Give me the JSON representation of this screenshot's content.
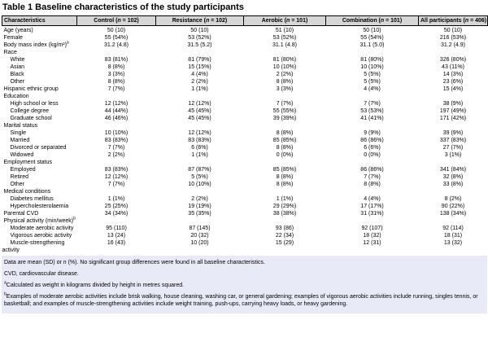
{
  "title": "Table 1 Baseline characteristics of the study participants",
  "colors": {
    "header_bg": "#d6d6d6",
    "footnote_bg": "#e9eaf7",
    "border": "#000000",
    "text": "#000000",
    "page_bg": "#ffffff"
  },
  "table": {
    "columns": [
      {
        "key": "characteristics",
        "label": "Characteristics"
      },
      {
        "key": "control",
        "label": "Control (n = 102)"
      },
      {
        "key": "resistance",
        "label": "Resistance (n = 102)"
      },
      {
        "key": "aerobic",
        "label": "Aerobic (n = 101)"
      },
      {
        "key": "combination",
        "label": "Combination (n = 101)"
      },
      {
        "key": "all-participants",
        "label": "All participants (n = 406)"
      }
    ],
    "rows": [
      {
        "label": "Age (years)",
        "indent": 0,
        "values": [
          "50 (10)",
          "50 (10)",
          "51 (10)",
          "50 (10)",
          "50 (10)"
        ]
      },
      {
        "label": "Female",
        "indent": 0,
        "values": [
          "55 (54%)",
          "53 (52%)",
          "53 (52%)",
          "55 (54%)",
          "216 (53%)"
        ]
      },
      {
        "label": "Body mass index (kg/m²)",
        "sup": "a",
        "indent": 0,
        "values": [
          "31.2 (4.8)",
          "31.5 (5.2)",
          "31.1 (4.8)",
          "31.1 (5.0)",
          "31.2 (4.9)"
        ]
      },
      {
        "label": "Race",
        "indent": 0,
        "values": []
      },
      {
        "label": "White",
        "indent": 1,
        "values": [
          "83 (81%)",
          "81 (79%)",
          "81 (80%)",
          "81 (80%)",
          "326 (80%)"
        ]
      },
      {
        "label": "Asian",
        "indent": 1,
        "values": [
          "8 (8%)",
          "15 (15%)",
          "10 (10%)",
          "10 (10%)",
          "43 (11%)"
        ]
      },
      {
        "label": "Black",
        "indent": 1,
        "values": [
          "3 (3%)",
          "4 (4%)",
          "2 (2%)",
          "5 (5%)",
          "14 (3%)"
        ]
      },
      {
        "label": "Other",
        "indent": 1,
        "values": [
          "8 (8%)",
          "2 (2%)",
          "8 (8%)",
          "5 (5%)",
          "23 (6%)"
        ]
      },
      {
        "label": "Hispanic ethnic group",
        "indent": 0,
        "values": [
          "7 (7%)",
          "1 (1%)",
          "3 (3%)",
          "4 (4%)",
          "15 (4%)"
        ]
      },
      {
        "label": "Education",
        "indent": 0,
        "values": []
      },
      {
        "label": "High school or less",
        "indent": 1,
        "values": [
          "12 (12%)",
          "12 (12%)",
          "7 (7%)",
          "7 (7%)",
          "38 (9%)"
        ]
      },
      {
        "label": "College degree",
        "indent": 1,
        "values": [
          "44 (44%)",
          "45 (45%)",
          "55 (55%)",
          "53 (53%)",
          "197 (49%)"
        ]
      },
      {
        "label": "Graduate school",
        "indent": 1,
        "values": [
          "46 (46%)",
          "45 (45%)",
          "39 (39%)",
          "41 (41%)",
          "171 (42%)"
        ]
      },
      {
        "label": "Marital status",
        "indent": 0,
        "values": []
      },
      {
        "label": "Single",
        "indent": 1,
        "values": [
          "10 (10%)",
          "12 (12%)",
          "8 (8%)",
          "9 (9%)",
          "39 (9%)"
        ]
      },
      {
        "label": "Married",
        "indent": 1,
        "values": [
          "83 (83%)",
          "83 (83%)",
          "85 (85%)",
          "86 (86%)",
          "337 (83%)"
        ]
      },
      {
        "label": "Divorced or separated",
        "indent": 1,
        "values": [
          "7 (7%)",
          "6 (6%)",
          "8 (8%)",
          "6 (6%)",
          "27 (7%)"
        ]
      },
      {
        "label": "Widowed",
        "indent": 1,
        "values": [
          "2 (2%)",
          "1 (1%)",
          "0 (0%)",
          "0 (0%)",
          "3 (1%)"
        ]
      },
      {
        "label": "Employment status",
        "indent": 0,
        "values": []
      },
      {
        "label": "Employed",
        "indent": 1,
        "values": [
          "83 (83%)",
          "87 (87%)",
          "85 (85%)",
          "86 (86%)",
          "341 (84%)"
        ]
      },
      {
        "label": "Retired",
        "indent": 1,
        "values": [
          "12 (12%)",
          "5 (5%)",
          "8 (8%)",
          "7 (7%)",
          "32 (8%)"
        ]
      },
      {
        "label": "Other",
        "indent": 1,
        "values": [
          "7 (7%)",
          "10 (10%)",
          "8 (8%)",
          "8 (8%)",
          "33 (8%)"
        ]
      },
      {
        "label": "Medical conditions",
        "indent": 0,
        "values": []
      },
      {
        "label": "Diabetes mellitus",
        "indent": 1,
        "values": [
          "1 (1%)",
          "2 (2%)",
          "1 (1%)",
          "4 (4%)",
          "8 (2%)"
        ]
      },
      {
        "label": "Hypercholesterolaemia",
        "indent": 1,
        "values": [
          "25 (25%)",
          "19 (19%)",
          "29 (29%)",
          "17 (17%)",
          "90 (22%)"
        ]
      },
      {
        "label": "Parental CVD",
        "indent": 0,
        "values": [
          "34 (34%)",
          "35 (35%)",
          "38 (38%)",
          "31 (31%)",
          "138 (34%)"
        ]
      },
      {
        "label": "Physical activity (min/week)",
        "sup": "b",
        "indent": 0,
        "values": []
      },
      {
        "label": "Moderate aerobic activity",
        "indent": 1,
        "values": [
          "95 (110)",
          "87 (145)",
          "93 (86)",
          "92 (107)",
          "92 (114)"
        ]
      },
      {
        "label": "Vigorous aerobic activity",
        "indent": 1,
        "values": [
          "13 (24)",
          "20 (32)",
          "22 (34)",
          "18 (32)",
          "18 (31)"
        ]
      },
      {
        "label": "Muscle-strengthening",
        "label2": "activity",
        "indent": 1,
        "values": [
          "16 (43)",
          "10 (20)",
          "15 (29)",
          "12 (31)",
          "13 (32)"
        ]
      }
    ]
  },
  "footnotes": [
    {
      "key": "general",
      "text": "Data are mean (SD) or n (%). No significant group differences were found in all baseline characteristics."
    },
    {
      "key": "abbreviation",
      "text": "CVD, cardiovascular disease."
    },
    {
      "key": "a",
      "sup": "a",
      "text": "Calculated as weight in kilograms divided by height in metres squared."
    },
    {
      "key": "b",
      "sup": "b",
      "text": "Examples of moderate aerobic activities include brisk walking, house cleaning, washing car, or general gardening; examples of vigorous aerobic activities include running, singles tennis, or basketball; and examples of muscle-strengthening activities include weight training, push-ups, carrying heavy loads, or heavy gardening."
    }
  ]
}
